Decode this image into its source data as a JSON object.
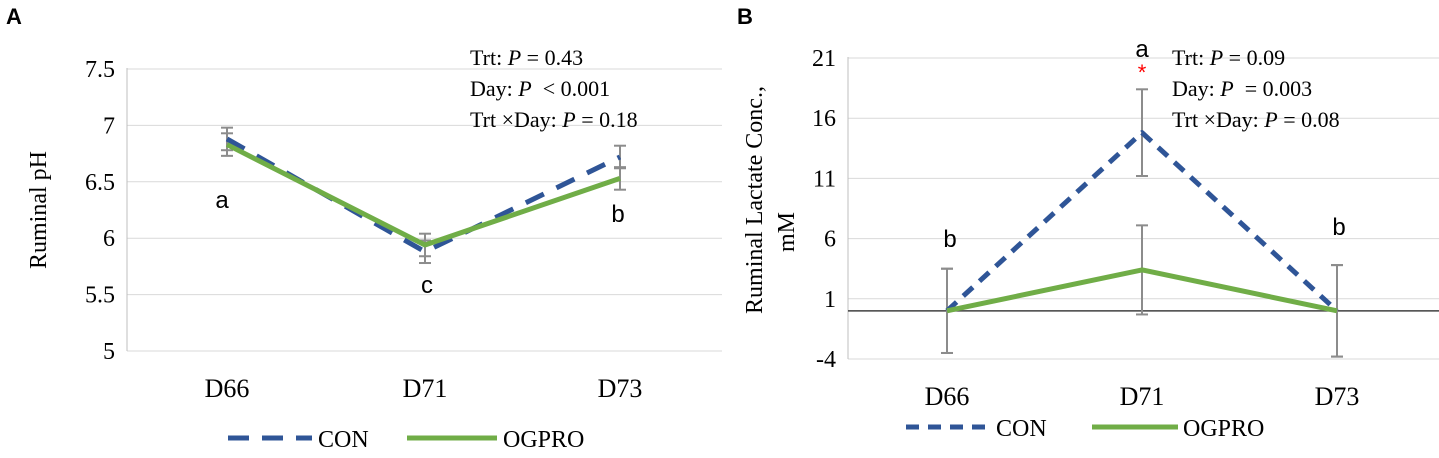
{
  "chart_data": [
    {
      "panel_label": "A",
      "type": "line",
      "categories": [
        "D66",
        "D71",
        "D73"
      ],
      "ylabel": "Ruminal pH",
      "ylim": [
        5,
        7.5
      ],
      "yticks": [
        "5",
        "5.5",
        "6",
        "6.5",
        "7",
        "7.5"
      ],
      "grid": true,
      "series": [
        {
          "name": "CON",
          "values": [
            6.88,
            5.88,
            6.72
          ],
          "errors": [
            0.1,
            0.1,
            0.1
          ],
          "color": "#2F5597",
          "dash": true
        },
        {
          "name": "OGPRO",
          "values": [
            6.83,
            5.94,
            6.53
          ],
          "errors": [
            0.1,
            0.1,
            0.1
          ],
          "color": "#70AD47",
          "dash": false
        }
      ],
      "letters": [
        "a",
        "c",
        "b"
      ],
      "stats": [
        {
          "label": "Trt: ",
          "p": "P",
          "value": " = 0.43"
        },
        {
          "label": "Day: ",
          "p": "P",
          "value": "  < 0.001"
        },
        {
          "label": "Trt ×Day: ",
          "p": "P",
          "value": " = 0.18"
        }
      ],
      "legend": [
        "CON",
        "OGPRO"
      ],
      "legend_position": "bottom"
    },
    {
      "panel_label": "B",
      "type": "line",
      "categories": [
        "D66",
        "D71",
        "D73"
      ],
      "ylabel": "Ruminal Lactate Conc., mM",
      "ylabel_lines": [
        "Ruminal Lactate Conc.,",
        "mM"
      ],
      "ylim": [
        -4,
        21
      ],
      "yticks": [
        "-4",
        "1",
        "6",
        "11",
        "16",
        "21"
      ],
      "grid": true,
      "zero_line": 0,
      "series": [
        {
          "name": "CON",
          "values": [
            0,
            14.8,
            0
          ],
          "errors": [
            3.5,
            3.6,
            3.8
          ],
          "color": "#2F5597",
          "dash": true
        },
        {
          "name": "OGPRO",
          "values": [
            0,
            3.4,
            0
          ],
          "errors": [
            3.5,
            3.7,
            3.8
          ],
          "color": "#70AD47",
          "dash": false
        }
      ],
      "letters": [
        "b",
        "a",
        "b"
      ],
      "asterisk": "*",
      "asterisk_color": "#FF0000",
      "stats": [
        {
          "label": "Trt: ",
          "p": "P",
          "value": " = 0.09"
        },
        {
          "label": "Day: ",
          "p": "P",
          "value": "  = 0.003"
        },
        {
          "label": "Trt ×Day: ",
          "p": "P",
          "value": " = 0.08"
        }
      ],
      "legend": [
        "CON",
        "OGPRO"
      ],
      "legend_position": "bottom"
    }
  ]
}
